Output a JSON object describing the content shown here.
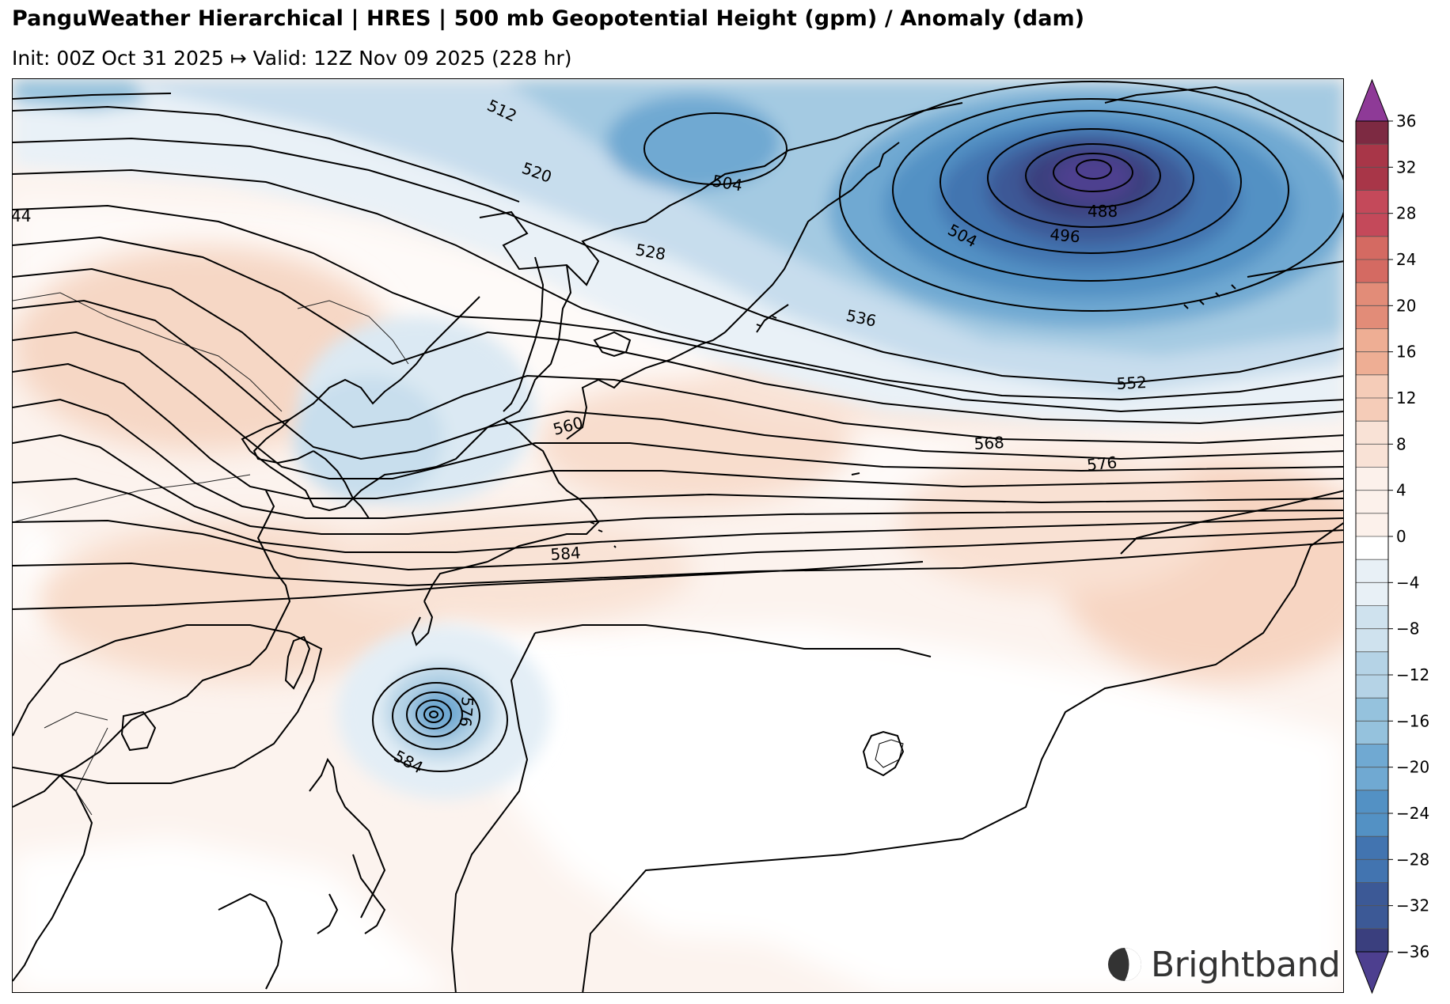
{
  "header": {
    "title": "PanguWeather Hierarchical | HRES | 500 mb Geopotential Height (gpm) / Anomaly (dam)",
    "subtitle": "Init: 00Z Oct 31 2025 ↦ Valid: 12Z Nov 09 2025 (228 hr)"
  },
  "map": {
    "contour_labels": [
      "512",
      "520",
      "504",
      "528",
      "536",
      "552",
      "560",
      "568",
      "576",
      "584",
      "488",
      "496",
      "504",
      "576",
      "584",
      "44"
    ]
  },
  "colorbar": {
    "ticks": [
      "36",
      "32",
      "28",
      "24",
      "20",
      "16",
      "12",
      "8",
      "4",
      "0",
      "−4",
      "−8",
      "−12",
      "−16",
      "−20",
      "−24",
      "−28",
      "−32",
      "−36"
    ],
    "colors": {
      "36": "#7d2a42",
      "32": "#a83648",
      "28": "#c4495a",
      "24": "#d46a62",
      "20": "#e28c78",
      "16": "#eeae94",
      "12": "#f5ccb8",
      "8": "#f9e2d6",
      "4": "#fcf1eb",
      "0": "#ffffff",
      "-4": "#e8f0f6",
      "-8": "#cfe2ee",
      "-12": "#b5d3e6",
      "-16": "#95c2dd",
      "-20": "#70a9d2",
      "-24": "#5391c4",
      "-28": "#4274b0",
      "-32": "#3c5996",
      "-36": "#3a3f7e",
      "over": "#8e3a97",
      "under": "#4d3f8f"
    }
  },
  "branding": {
    "logo_text": "Brightband"
  }
}
